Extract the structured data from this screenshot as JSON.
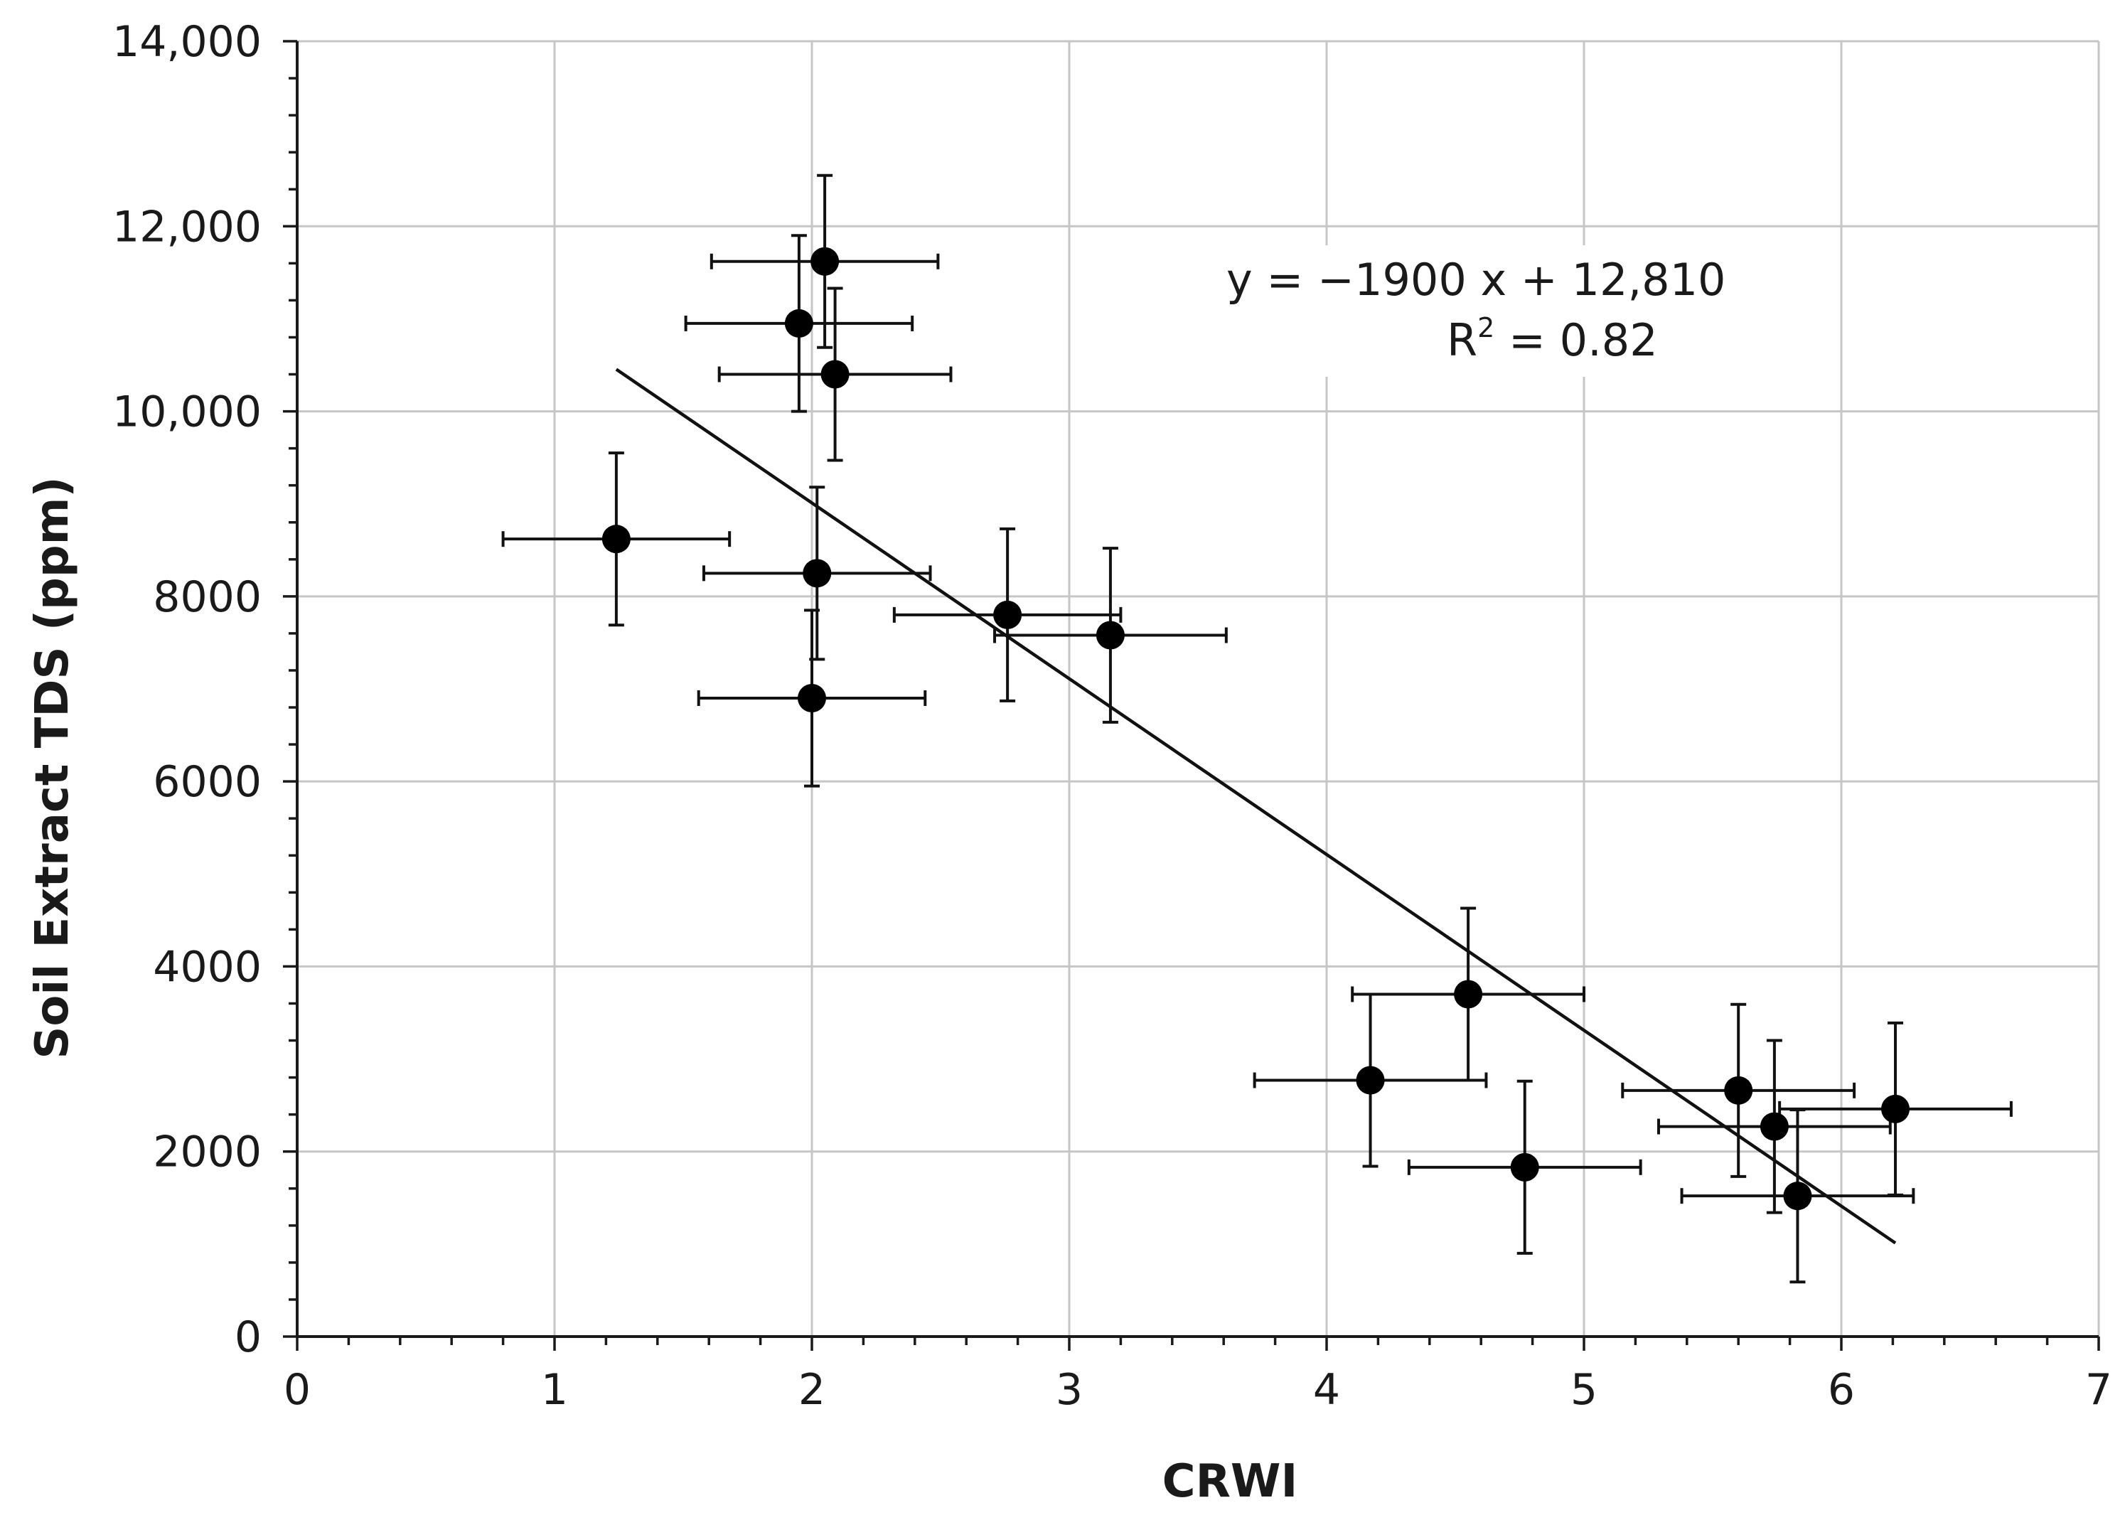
{
  "chart_data": {
    "type": "scatter",
    "title": "",
    "xlabel": "CRWI",
    "ylabel": "Soil Extract TDS (ppm)",
    "xlim": [
      0,
      7
    ],
    "ylim": [
      0,
      14000
    ],
    "x_ticks": [
      0,
      1,
      2,
      3,
      4,
      5,
      6,
      7
    ],
    "x_tick_labels": [
      "0",
      "1",
      "2",
      "3",
      "4",
      "5",
      "6",
      "7"
    ],
    "y_ticks": [
      0,
      2000,
      4000,
      6000,
      8000,
      10000,
      12000,
      14000
    ],
    "y_tick_labels": [
      "0",
      "2000",
      "4000",
      "6000",
      "8000",
      "10,000",
      "12,000",
      "14,000"
    ],
    "grid": true,
    "points": [
      {
        "x": 1.24,
        "y": 8620,
        "xerr": 0.44,
        "yerr": 930
      },
      {
        "x": 1.95,
        "y": 10950,
        "xerr": 0.44,
        "yerr": 950
      },
      {
        "x": 2.05,
        "y": 11620,
        "xerr": 0.44,
        "yerr": 930
      },
      {
        "x": 2.09,
        "y": 10400,
        "xerr": 0.45,
        "yerr": 930
      },
      {
        "x": 2.02,
        "y": 8250,
        "xerr": 0.44,
        "yerr": 930
      },
      {
        "x": 2.0,
        "y": 6900,
        "xerr": 0.44,
        "yerr": 950
      },
      {
        "x": 2.76,
        "y": 7800,
        "xerr": 0.44,
        "yerr": 930
      },
      {
        "x": 3.16,
        "y": 7580,
        "xerr": 0.45,
        "yerr": 940
      },
      {
        "x": 4.17,
        "y": 2770,
        "xerr": 0.45,
        "yerr": 930
      },
      {
        "x": 4.55,
        "y": 3700,
        "xerr": 0.45,
        "yerr": 930
      },
      {
        "x": 4.77,
        "y": 1830,
        "xerr": 0.45,
        "yerr": 930
      },
      {
        "x": 5.6,
        "y": 2660,
        "xerr": 0.45,
        "yerr": 930
      },
      {
        "x": 5.74,
        "y": 2270,
        "xerr": 0.45,
        "yerr": 930
      },
      {
        "x": 5.83,
        "y": 1520,
        "xerr": 0.45,
        "yerr": 930
      },
      {
        "x": 6.21,
        "y": 2460,
        "xerr": 0.45,
        "yerr": 930
      }
    ],
    "trendline": {
      "slope": -1900,
      "intercept": 12810,
      "x_start": 1.24,
      "x_end": 6.21
    },
    "equation_text": "y = −1900 x + 12,810",
    "r2_label": "R",
    "r2_sup": "2",
    "r2_value": " = 0.82"
  }
}
